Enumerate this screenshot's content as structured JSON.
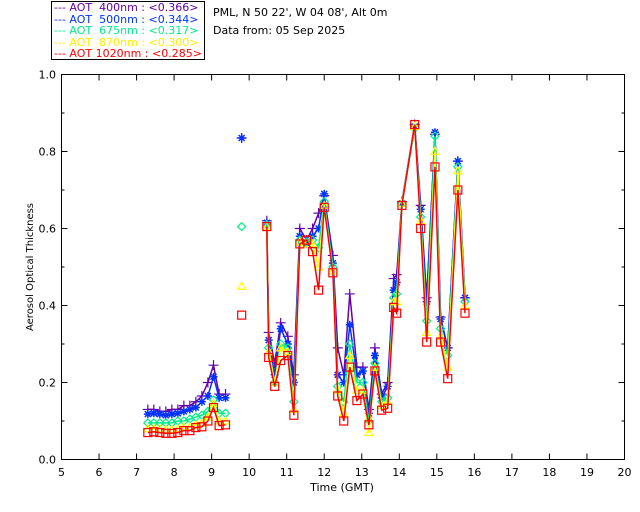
{
  "header": {
    "site": "PML, N 50 22', W 04 08', Alt 0m",
    "date": "Data from: 05 Sep 2025"
  },
  "chart_data": {
    "type": "line",
    "xlabel": "Time (GMT)",
    "ylabel": "Aerosol Optical Thickness",
    "xlim": [
      5,
      20
    ],
    "ylim": [
      0,
      1.0
    ],
    "xticks": [
      "5",
      "6",
      "7",
      "8",
      "9",
      "10",
      "11",
      "12",
      "13",
      "14",
      "15",
      "16",
      "17",
      "18",
      "19",
      "20"
    ],
    "yticks": [
      "0.0",
      "0.2",
      "0.4",
      "0.6",
      "0.8",
      "1.0"
    ],
    "legend_position": "top-left outside",
    "x": [
      7.3,
      7.46,
      7.62,
      7.78,
      7.94,
      8.1,
      8.26,
      8.42,
      8.58,
      8.74,
      8.9,
      9.05,
      9.2,
      9.37,
      9.8,
      10.47,
      10.52,
      10.68,
      10.84,
      11.03,
      11.19,
      11.35,
      11.53,
      11.69,
      11.85,
      12.0,
      12.23,
      12.36,
      12.52,
      12.68,
      12.87,
      13.03,
      13.19,
      13.35,
      13.53,
      13.69,
      13.85,
      13.93,
      14.07,
      14.41,
      14.57,
      14.73,
      14.95,
      15.1,
      15.29,
      15.56,
      15.75
    ],
    "series": [
      {
        "name": "AOT  400nm : <0.366>",
        "color": "#6600aa",
        "marker": "plus",
        "values": [
          0.13,
          0.13,
          0.125,
          0.125,
          0.13,
          0.13,
          0.14,
          0.14,
          0.15,
          0.165,
          0.2,
          0.245,
          0.17,
          0.17,
          0.835,
          0.62,
          0.33,
          0.25,
          0.355,
          0.32,
          0.22,
          0.6,
          0.57,
          0.6,
          0.64,
          0.685,
          0.53,
          0.29,
          0.22,
          0.43,
          0.24,
          0.24,
          0.13,
          0.29,
          0.17,
          0.2,
          0.47,
          0.48,
          0.67,
          0.87,
          0.66,
          0.42,
          0.845,
          0.37,
          0.29,
          0.775,
          0.42
        ]
      },
      {
        "name": "AOT  500nm : <0.344>",
        "color": "#0033ff",
        "marker": "asterisk",
        "values": [
          0.118,
          0.12,
          0.118,
          0.115,
          0.118,
          0.12,
          0.125,
          0.13,
          0.135,
          0.15,
          0.165,
          0.215,
          0.16,
          0.16,
          0.835,
          0.615,
          0.31,
          0.22,
          0.34,
          0.3,
          0.2,
          0.58,
          0.56,
          0.58,
          0.6,
          0.69,
          0.51,
          0.22,
          0.2,
          0.35,
          0.22,
          0.23,
          0.12,
          0.27,
          0.16,
          0.19,
          0.44,
          0.46,
          0.665,
          0.865,
          0.65,
          0.41,
          0.85,
          0.365,
          0.29,
          0.775,
          0.42
        ]
      },
      {
        "name": "AOT  675nm : <0.317>",
        "color": "#00ee88",
        "marker": "diamond",
        "values": [
          0.095,
          0.095,
          0.095,
          0.095,
          0.095,
          0.1,
          0.1,
          0.105,
          0.11,
          0.115,
          0.125,
          0.155,
          0.12,
          0.12,
          0.605,
          0.61,
          0.29,
          0.2,
          0.3,
          0.29,
          0.15,
          0.57,
          0.565,
          0.57,
          0.55,
          0.67,
          0.5,
          0.19,
          0.15,
          0.3,
          0.2,
          0.2,
          0.1,
          0.25,
          0.15,
          0.16,
          0.42,
          0.43,
          0.665,
          0.86,
          0.63,
          0.36,
          0.84,
          0.34,
          0.27,
          0.76,
          0.41
        ]
      },
      {
        "name": "AOT  870nm : <0.300>",
        "color": "#ffff00",
        "marker": "triangle",
        "values": [
          0.08,
          0.08,
          0.08,
          0.078,
          0.078,
          0.08,
          0.085,
          0.085,
          0.09,
          0.095,
          0.11,
          0.145,
          0.1,
          0.1,
          0.45,
          0.605,
          0.28,
          0.2,
          0.29,
          0.28,
          0.13,
          0.565,
          0.56,
          0.56,
          0.5,
          0.66,
          0.49,
          0.18,
          0.12,
          0.27,
          0.18,
          0.18,
          0.07,
          0.24,
          0.14,
          0.15,
          0.41,
          0.41,
          0.665,
          0.865,
          0.62,
          0.33,
          0.8,
          0.32,
          0.24,
          0.75,
          0.4
        ]
      },
      {
        "name": "AOT 1020nm : <0.285>",
        "color": "#ff0000",
        "marker": "square",
        "values": [
          0.07,
          0.072,
          0.07,
          0.068,
          0.068,
          0.07,
          0.075,
          0.075,
          0.083,
          0.085,
          0.1,
          0.135,
          0.088,
          0.09,
          0.375,
          0.605,
          0.265,
          0.19,
          0.257,
          0.27,
          0.115,
          0.56,
          0.57,
          0.54,
          0.44,
          0.655,
          0.485,
          0.165,
          0.1,
          0.24,
          0.153,
          0.17,
          0.09,
          0.23,
          0.128,
          0.133,
          0.395,
          0.38,
          0.66,
          0.87,
          0.6,
          0.305,
          0.76,
          0.305,
          0.21,
          0.7,
          0.38
        ]
      }
    ]
  }
}
